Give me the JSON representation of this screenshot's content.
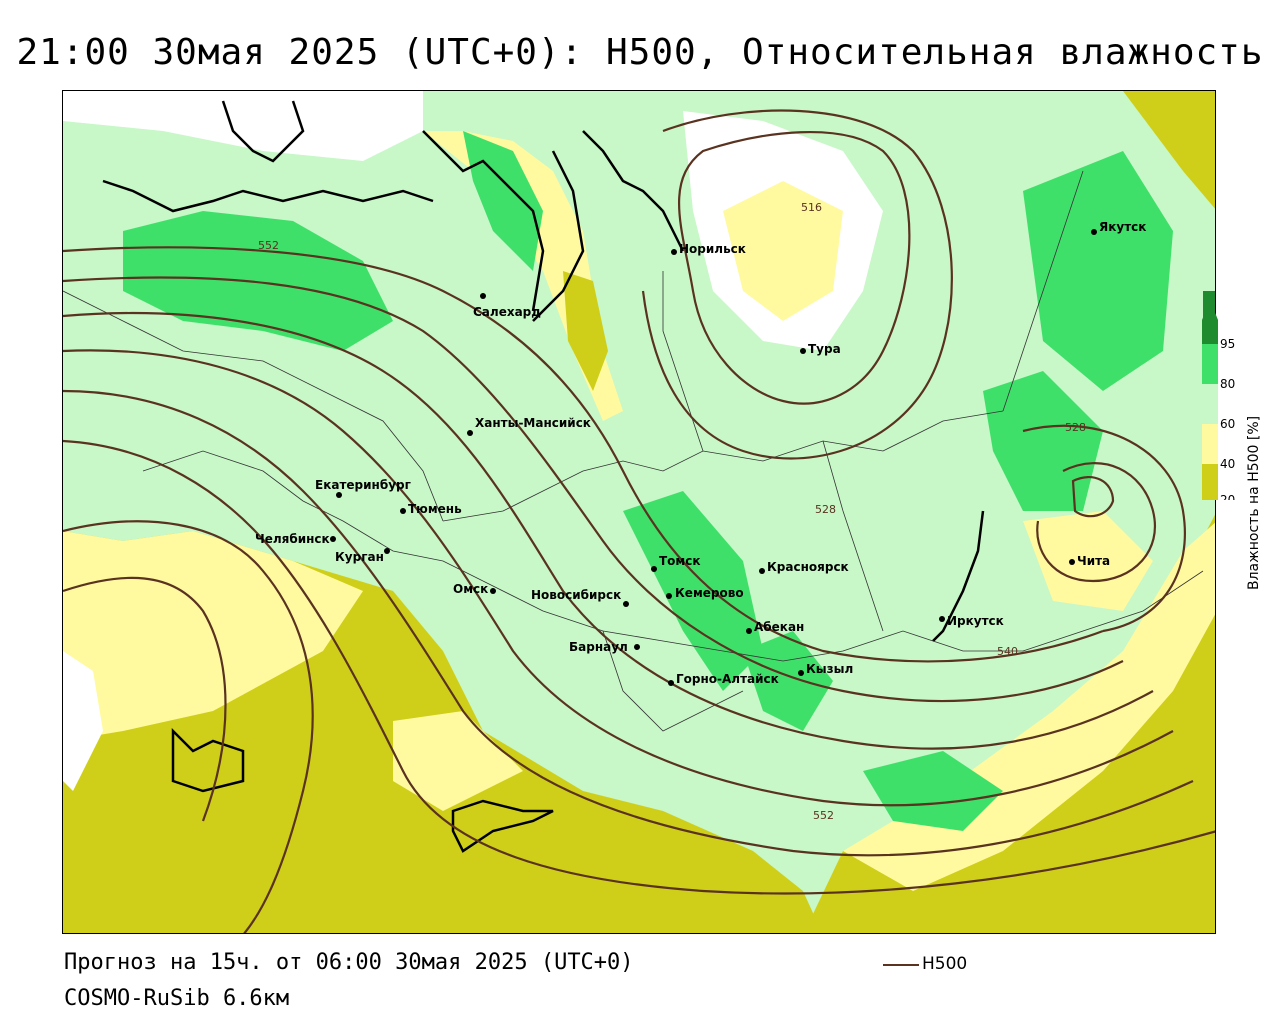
{
  "header": {
    "title": "21:00 30мая 2025 (UTC+0): H500, Относительная влажность"
  },
  "footer": {
    "forecast": "Прогноз на 15ч. от 06:00 30мая 2025 (UTC+0)",
    "model": "COSMO-RuSib 6.6км",
    "line_legend": "H500"
  },
  "legend": {
    "title": "Влажность на H500 [%]",
    "ticks": [
      "95",
      "80",
      "60",
      "40",
      "20"
    ],
    "colors": {
      "c95": "#1e8c2e",
      "c80": "#3fe06a",
      "c60": "#c8f7c8",
      "c40": "#fffaa0",
      "c20": "#cfcf1a"
    }
  },
  "map": {
    "contour_color": "#5a3220",
    "contour_labels": [
      "552",
      "516",
      "528",
      "528",
      "540",
      "552"
    ],
    "cities": [
      {
        "name": "Якутск"
      },
      {
        "name": "Норильск"
      },
      {
        "name": "Салехард"
      },
      {
        "name": "Тура"
      },
      {
        "name": "Ханты-Мансийск"
      },
      {
        "name": "Екатеринбург"
      },
      {
        "name": "Тюмень"
      },
      {
        "name": "Челябинск"
      },
      {
        "name": "Курган"
      },
      {
        "name": "Омск"
      },
      {
        "name": "Новосибирск"
      },
      {
        "name": "Томск"
      },
      {
        "name": "Кемерово"
      },
      {
        "name": "Красноярск"
      },
      {
        "name": "Абекан"
      },
      {
        "name": "Барнаул"
      },
      {
        "name": "Горно-Алтайск"
      },
      {
        "name": "Кызыл"
      },
      {
        "name": "Иркутск"
      },
      {
        "name": "Чита"
      }
    ]
  }
}
